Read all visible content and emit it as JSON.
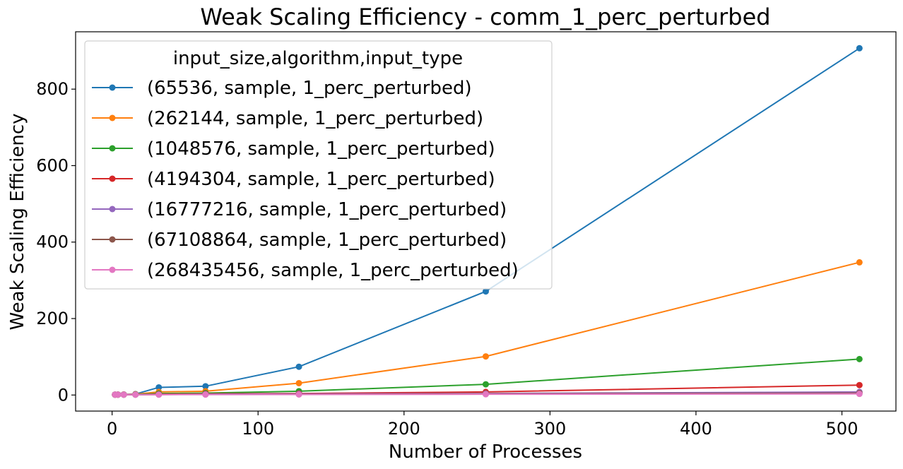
{
  "chart_data": {
    "type": "line",
    "title": "Weak Scaling Efficiency - comm_1_perc_perturbed",
    "xlabel": "Number of Processes",
    "ylabel": "Weak Scaling Efficiency",
    "xlim": [
      -25,
      537
    ],
    "ylim": [
      -42,
      950
    ],
    "xticks": [
      0,
      100,
      200,
      300,
      400,
      500
    ],
    "yticks": [
      0,
      200,
      400,
      600,
      800
    ],
    "grid": false,
    "legend_title": "input_size,algorithm,input_type",
    "legend_placement": "upper left",
    "x": [
      2,
      4,
      8,
      16,
      32,
      64,
      128,
      256,
      512
    ],
    "series": [
      {
        "name": "(65536, sample, 1_perc_perturbed)",
        "color": "#1f77b4",
        "values": [
          1.0,
          1.2,
          1.5,
          2.5,
          20,
          23,
          74,
          271,
          907
        ]
      },
      {
        "name": "(262144, sample, 1_perc_perturbed)",
        "color": "#ff7f0e",
        "values": [
          1.0,
          1.1,
          1.3,
          2.0,
          8,
          10,
          31,
          101,
          347
        ]
      },
      {
        "name": "(1048576, sample, 1_perc_perturbed)",
        "color": "#2ca02c",
        "values": [
          1.0,
          1.0,
          1.1,
          1.5,
          4,
          5,
          10,
          28,
          94
        ]
      },
      {
        "name": "(4194304, sample, 1_perc_perturbed)",
        "color": "#d62728",
        "values": [
          1.0,
          1.0,
          1.0,
          1.2,
          2,
          3,
          4,
          8,
          26
        ]
      },
      {
        "name": "(16777216, sample, 1_perc_perturbed)",
        "color": "#9467bd",
        "values": [
          1.0,
          1.0,
          1.0,
          1.0,
          1.5,
          2,
          3,
          4,
          8
        ]
      },
      {
        "name": "(67108864, sample, 1_perc_perturbed)",
        "color": "#8c564b",
        "values": [
          1.0,
          1.0,
          1.0,
          1.0,
          1.2,
          1.5,
          2,
          3,
          5
        ]
      },
      {
        "name": "(268435456, sample, 1_perc_perturbed)",
        "color": "#e377c2",
        "values": [
          1.0,
          1.0,
          1.0,
          1.0,
          1.0,
          1.2,
          1.5,
          2,
          3
        ]
      }
    ]
  }
}
